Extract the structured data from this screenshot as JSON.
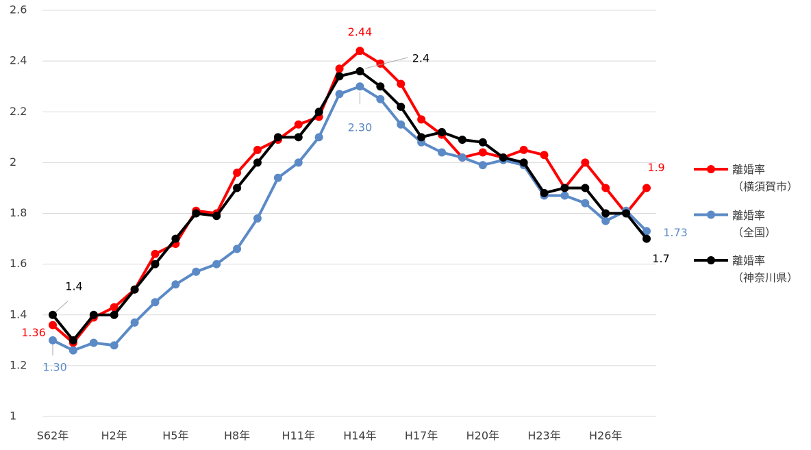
{
  "chart_data": {
    "type": "line",
    "categories": [
      "S62年",
      null,
      null,
      "H2年",
      null,
      null,
      "H5年",
      null,
      null,
      "H8年",
      null,
      null,
      "H11年",
      null,
      null,
      "H14年",
      null,
      null,
      "H17年",
      null,
      null,
      "H20年",
      null,
      null,
      "H23年",
      null,
      null,
      "H26年",
      null,
      null
    ],
    "ylim": [
      1,
      2.6
    ],
    "yticks": [
      1,
      1.2,
      1.4,
      1.6,
      1.8,
      2,
      2.2,
      2.4,
      2.6
    ],
    "grid": true,
    "legend": "right",
    "series": [
      {
        "name": "離婚率\n（横須賀市）",
        "color": "#ff0000",
        "values": [
          1.36,
          1.29,
          1.39,
          1.43,
          1.5,
          1.64,
          1.68,
          1.81,
          1.8,
          1.96,
          2.05,
          2.09,
          2.15,
          2.18,
          2.37,
          2.44,
          2.39,
          2.31,
          2.17,
          2.11,
          2.02,
          2.04,
          2.02,
          2.05,
          2.03,
          1.9,
          2.0,
          1.9,
          1.8,
          1.9
        ],
        "value_labels": [
          "1.36",
          null,
          null,
          null,
          null,
          null,
          null,
          null,
          null,
          null,
          null,
          null,
          null,
          null,
          null,
          "2.44",
          null,
          null,
          null,
          null,
          null,
          null,
          null,
          null,
          null,
          null,
          null,
          null,
          null,
          "1.9"
        ]
      },
      {
        "name": "離婚率\n（全国）",
        "color": "#5b8ac6",
        "values": [
          1.3,
          1.26,
          1.29,
          1.28,
          1.37,
          1.45,
          1.52,
          1.57,
          1.6,
          1.66,
          1.78,
          1.94,
          2.0,
          2.1,
          2.27,
          2.3,
          2.25,
          2.15,
          2.08,
          2.04,
          2.02,
          1.99,
          2.01,
          1.99,
          1.87,
          1.87,
          1.84,
          1.77,
          1.81,
          1.73
        ],
        "value_labels": [
          "1.30",
          null,
          null,
          null,
          null,
          null,
          null,
          null,
          null,
          null,
          null,
          null,
          null,
          null,
          null,
          "2.30",
          null,
          null,
          null,
          null,
          null,
          null,
          null,
          null,
          null,
          null,
          null,
          null,
          null,
          "1.73"
        ]
      },
      {
        "name": "離婚率\n（神奈川県）",
        "color": "#000000",
        "values": [
          1.4,
          1.3,
          1.4,
          1.4,
          1.5,
          1.6,
          1.7,
          1.8,
          1.79,
          1.9,
          2.0,
          2.1,
          2.1,
          2.2,
          2.34,
          2.36,
          2.3,
          2.22,
          2.1,
          2.12,
          2.09,
          2.08,
          2.02,
          2.0,
          1.88,
          1.9,
          1.9,
          1.8,
          1.8,
          1.7
        ],
        "value_labels": [
          "1.4",
          null,
          null,
          null,
          null,
          null,
          null,
          null,
          null,
          null,
          null,
          null,
          null,
          null,
          null,
          "2.4",
          null,
          null,
          null,
          null,
          null,
          null,
          null,
          null,
          null,
          null,
          null,
          null,
          null,
          "1.7"
        ]
      }
    ]
  }
}
